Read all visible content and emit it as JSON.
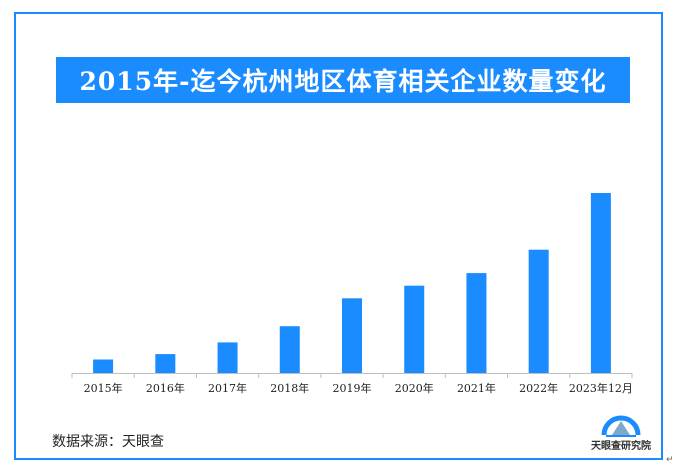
{
  "title": "2015年-迄今杭州地区体育相关企业数量变化",
  "source": "数据来源：天眼查",
  "logo_text": "天眼查研究院",
  "colors": {
    "frame": "#1a8cff",
    "title_bg": "#1a8cff",
    "bar": "#1a8cff"
  },
  "chart_data": {
    "type": "bar",
    "title": "2015年-迄今杭州地区体育相关企业数量变化",
    "categories": [
      "2015年",
      "2016年",
      "2017年",
      "2018年",
      "2019年",
      "2020年",
      "2021年",
      "2022年",
      "2023年12月"
    ],
    "values": [
      7.5,
      10.5,
      17,
      26,
      41.5,
      48.5,
      55.5,
      68.5,
      100
    ],
    "xlabel": "",
    "ylabel": "",
    "ylim": [
      0,
      100
    ],
    "grid": false,
    "legend": "none"
  }
}
